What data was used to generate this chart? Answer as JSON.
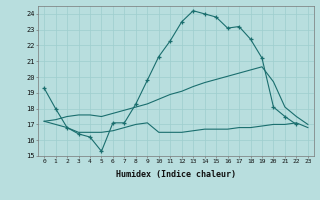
{
  "background_color": "#b8dede",
  "grid_color": "#9ecece",
  "line_color": "#1a6e6e",
  "xlabel": "Humidex (Indice chaleur)",
  "xlim": [
    -0.5,
    23.5
  ],
  "ylim": [
    15,
    24.5
  ],
  "yticks": [
    15,
    16,
    17,
    18,
    19,
    20,
    21,
    22,
    23,
    24
  ],
  "xtick_labels": [
    "0",
    "1",
    "2",
    "3",
    "4",
    "5",
    "6",
    "7",
    "8",
    "9",
    "10",
    "11",
    "12",
    "13",
    "14",
    "15",
    "16",
    "17",
    "18",
    "19",
    "20",
    "21",
    "22",
    "23"
  ],
  "curve1_x": [
    0,
    1,
    2,
    3,
    4,
    5,
    6,
    7,
    8,
    9,
    10,
    11,
    12,
    13,
    14,
    15,
    16,
    17,
    18,
    19,
    20,
    21,
    22
  ],
  "curve1_y": [
    19.3,
    18.0,
    16.8,
    16.4,
    16.2,
    15.3,
    17.1,
    17.1,
    18.3,
    19.8,
    21.3,
    22.3,
    23.5,
    24.2,
    24.0,
    23.8,
    23.1,
    23.2,
    22.4,
    21.2,
    18.1,
    17.5,
    17.0
  ],
  "curve2_x": [
    0,
    2,
    3,
    5,
    6,
    7,
    8,
    9,
    10,
    11,
    12,
    13,
    14,
    15,
    16,
    17,
    18,
    19,
    20,
    21,
    22,
    23
  ],
  "curve2_y": [
    17.2,
    16.8,
    16.5,
    16.5,
    16.6,
    16.8,
    17.0,
    17.1,
    16.5,
    16.5,
    16.5,
    16.6,
    16.7,
    16.7,
    16.7,
    16.8,
    16.8,
    16.9,
    17.0,
    17.0,
    17.1,
    16.8
  ],
  "curve3_x": [
    0,
    1,
    2,
    3,
    4,
    5,
    6,
    7,
    8,
    9,
    10,
    11,
    12,
    13,
    14,
    15,
    16,
    17,
    18,
    19,
    20,
    21,
    22,
    23
  ],
  "curve3_y": [
    17.2,
    17.3,
    17.5,
    17.6,
    17.6,
    17.5,
    17.7,
    17.9,
    18.1,
    18.3,
    18.6,
    18.9,
    19.1,
    19.4,
    19.65,
    19.85,
    20.05,
    20.25,
    20.45,
    20.65,
    19.7,
    18.1,
    17.5,
    17.0
  ]
}
